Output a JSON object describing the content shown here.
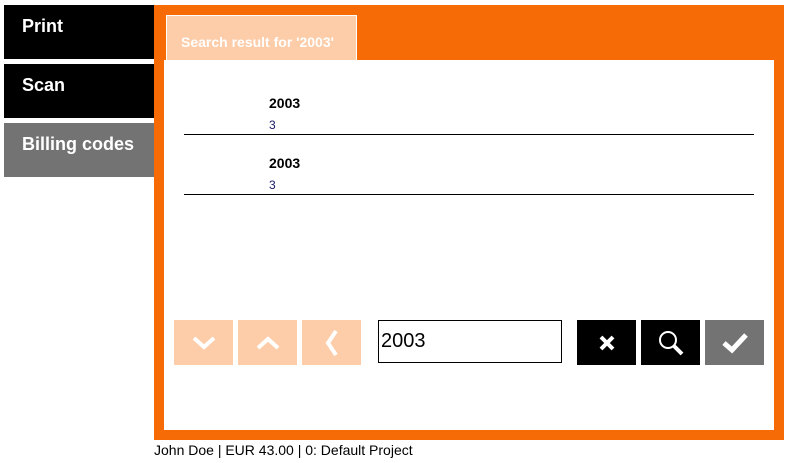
{
  "sidebar": {
    "items": [
      {
        "label": "Print",
        "color": "#000000"
      },
      {
        "label": "Scan",
        "color": "#000000"
      },
      {
        "label": "Billing codes",
        "color": "#737373"
      }
    ]
  },
  "tab": {
    "label": "Search result for '2003'"
  },
  "results": [
    {
      "title": "2003",
      "subtitle": "3"
    },
    {
      "title": "2003",
      "subtitle": "3"
    }
  ],
  "toolbar": {
    "search_value": "2003",
    "icons": [
      "chevron-down",
      "chevron-up",
      "chevron-left",
      "close",
      "search",
      "check"
    ]
  },
  "footer": {
    "status": "John Doe | EUR 43.00 | 0: Default Project"
  },
  "colors": {
    "accent": "#f76b07",
    "light_accent": "#fdcca8"
  }
}
